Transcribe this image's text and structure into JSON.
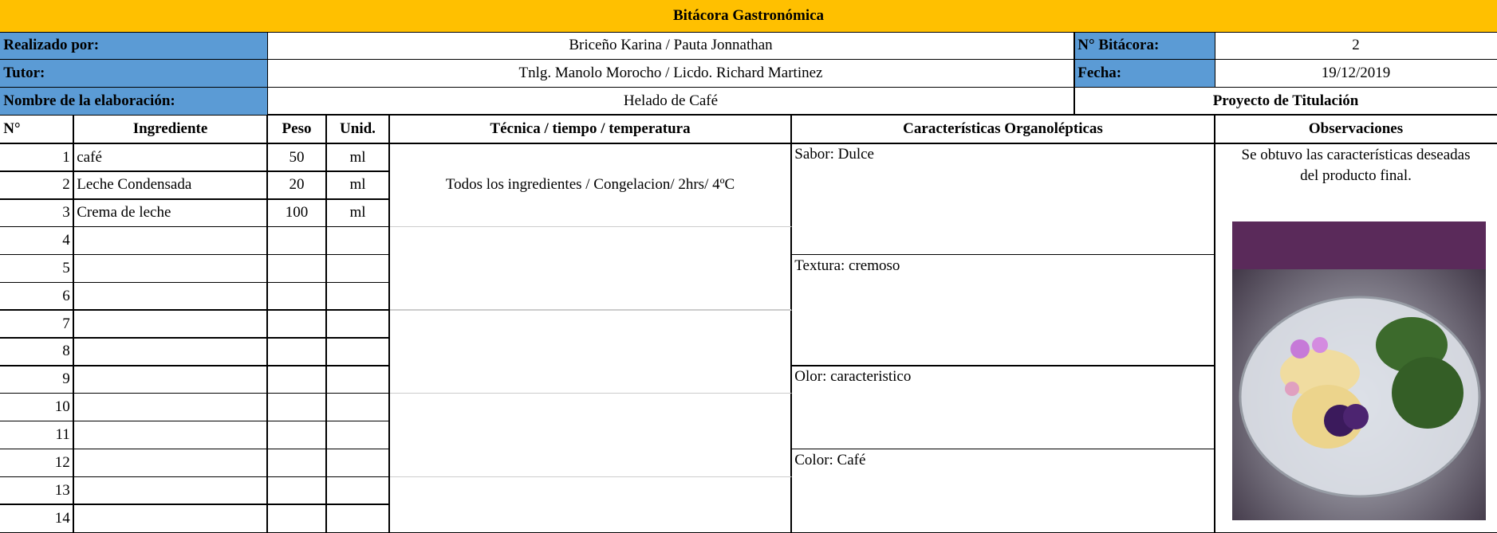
{
  "header": {
    "title": "Bitácora Gastronómica"
  },
  "info": {
    "realizado_label": "Realizado por:",
    "realizado": "Briceño Karina / Pauta Jonnathan",
    "bitacora_label": "N° Bitácora:",
    "bitacora": "2",
    "tutor_label": "Tutor:",
    "tutor": "Tnlg. Manolo Morocho / Licdo. Richard Martinez",
    "fecha_label": "Fecha:",
    "fecha": "19/12/2019",
    "nombre_label": "Nombre de la elaboración:",
    "nombre": "Helado de Café",
    "proyecto": "Proyecto de Titulación"
  },
  "table": {
    "headers": [
      "N°",
      "Ingrediente",
      "Peso",
      "Unid.",
      "Técnica / tiempo / temperatura",
      "Características Organolépticas",
      "Observaciones"
    ],
    "rows": [
      [
        "1",
        "café",
        "50",
        "ml"
      ],
      [
        "2",
        "Leche Condensada",
        "20",
        "ml"
      ],
      [
        "3",
        "Crema de leche",
        "100",
        "ml"
      ],
      [
        "4"
      ],
      [
        "5"
      ],
      [
        "6"
      ],
      [
        "7"
      ],
      [
        "8"
      ],
      [
        "9"
      ],
      [
        "10"
      ],
      [
        "11"
      ],
      [
        "12"
      ],
      [
        "13"
      ],
      [
        "14"
      ]
    ],
    "tecnica": "Todos los ingredientes / Congelacion/ 2hrs/ 4ºC",
    "caracteristicas": [
      "Sabor: Dulce",
      "Textura: cremoso",
      "Olor: caracteristico",
      "Color: Café"
    ],
    "observaciones": "Se obtuvo las características deseadas del producto final."
  }
}
